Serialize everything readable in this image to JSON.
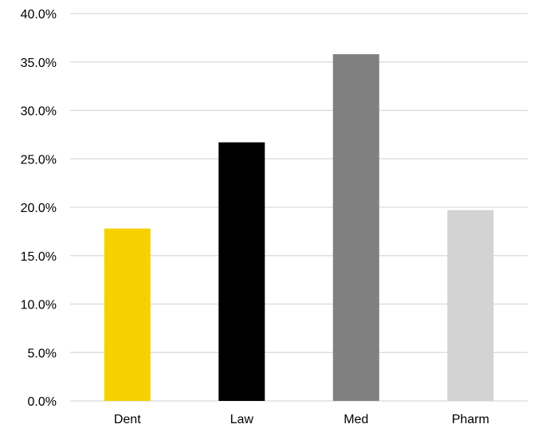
{
  "chart_data": {
    "type": "bar",
    "title": "",
    "xlabel": "",
    "ylabel": "",
    "categories": [
      "Dent",
      "Law",
      "Med",
      "Pharm"
    ],
    "values": [
      17.8,
      26.7,
      35.8,
      19.7
    ],
    "bar_colors": [
      "#f7d000",
      "#000000",
      "#808080",
      "#d3d3d3"
    ],
    "ylim": [
      0,
      40
    ],
    "y_ticks": [
      0,
      5,
      10,
      15,
      20,
      25,
      30,
      35,
      40
    ],
    "y_tick_labels": [
      "0.0%",
      "5.0%",
      "10.0%",
      "15.0%",
      "20.0%",
      "25.0%",
      "30.0%",
      "35.0%",
      "40.0%"
    ],
    "grid": true,
    "legend": "none"
  }
}
